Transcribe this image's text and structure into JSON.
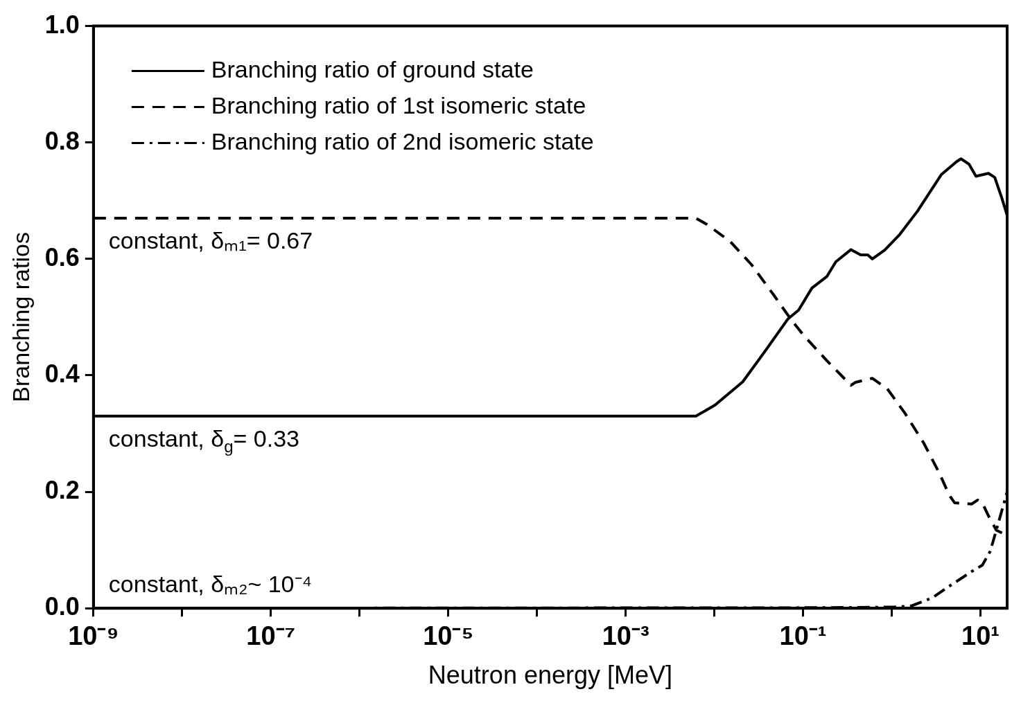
{
  "chart_data": {
    "type": "line",
    "xlabel": "Neutron energy [MeV]",
    "ylabel": "Branching ratios",
    "log": "x",
    "xlim": [
      1e-09,
      20
    ],
    "ylim": [
      0,
      1
    ],
    "xticks": [
      {
        "value": 1e-09,
        "label": "10⁻⁹"
      },
      {
        "value": 1e-08,
        "label": null
      },
      {
        "value": 1e-07,
        "label": "10⁻⁷"
      },
      {
        "value": 1e-06,
        "label": null
      },
      {
        "value": 1e-05,
        "label": "10⁻⁵"
      },
      {
        "value": 0.0001,
        "label": null
      },
      {
        "value": 0.001,
        "label": "10⁻³"
      },
      {
        "value": 0.01,
        "label": null
      },
      {
        "value": 0.1,
        "label": "10⁻¹"
      },
      {
        "value": 1,
        "label": null
      },
      {
        "value": 10,
        "label": "10¹"
      }
    ],
    "yticks": [
      {
        "value": 0,
        "label": "0.0"
      },
      {
        "value": 0.2,
        "label": "0.2"
      },
      {
        "value": 0.4,
        "label": "0.4"
      },
      {
        "value": 0.6,
        "label": "0.6"
      },
      {
        "value": 0.8,
        "label": "0.8"
      },
      {
        "value": 1,
        "label": "1.0"
      }
    ],
    "grid": false,
    "legend": "top left",
    "marker": "none",
    "series": [
      {
        "name": "Branching ratio of ground state",
        "color": "#000000",
        "line_style": "solid",
        "x": [
          1e-09,
          0.0062,
          0.0102,
          0.0209,
          0.0363,
          0.0676,
          0.0891,
          0.126,
          0.186,
          0.234,
          0.347,
          0.447,
          0.537,
          0.603,
          0.832,
          1.23,
          1.95,
          3.63,
          5.37,
          6.03,
          7.41,
          8.91,
          12.3,
          14.5,
          17.4,
          20
        ],
        "values": [
          0.33,
          0.33,
          0.349,
          0.389,
          0.439,
          0.497,
          0.512,
          0.55,
          0.57,
          0.595,
          0.616,
          0.607,
          0.607,
          0.6,
          0.615,
          0.642,
          0.682,
          0.745,
          0.767,
          0.772,
          0.763,
          0.742,
          0.747,
          0.74,
          0.705,
          0.675
        ]
      },
      {
        "name": "Branching ratio of 1st isomeric state",
        "color": "#000000",
        "line_style": "dashed",
        "x": [
          1e-09,
          0.0062,
          0.0081,
          0.0151,
          0.0263,
          0.0457,
          0.0724,
          0.1,
          0.186,
          0.347,
          0.389,
          0.603,
          0.891,
          1.41,
          2.29,
          3.39,
          4.47,
          5.13,
          7.94,
          9.33,
          10.5,
          12.3,
          15.1,
          20
        ],
        "values": [
          0.67,
          0.67,
          0.66,
          0.63,
          0.59,
          0.54,
          0.497,
          0.47,
          0.425,
          0.383,
          0.388,
          0.395,
          0.377,
          0.335,
          0.284,
          0.234,
          0.194,
          0.181,
          0.179,
          0.186,
          0.181,
          0.159,
          0.134,
          0.125
        ]
      },
      {
        "name": "Branching ratio of 2nd isomeric state",
        "color": "#000000",
        "line_style": "dashdot",
        "x": [
          1e-09,
          0.126,
          1.05,
          1.66,
          2.88,
          4.27,
          7.94,
          10.5,
          12.9,
          15.1,
          20
        ],
        "values": [
          0,
          0.001,
          0.002,
          0.004,
          0.018,
          0.036,
          0.063,
          0.074,
          0.098,
          0.134,
          0.2
        ]
      }
    ],
    "annotations": [
      {
        "text": "constant, δₘ₁= 0.67",
        "y": 0.67
      },
      {
        "text": "constant, δ$_{g}$= 0.33",
        "y": 0.33
      },
      {
        "text": "constant, δₘ₂~ 10⁻⁴",
        "y": 0
      }
    ]
  }
}
